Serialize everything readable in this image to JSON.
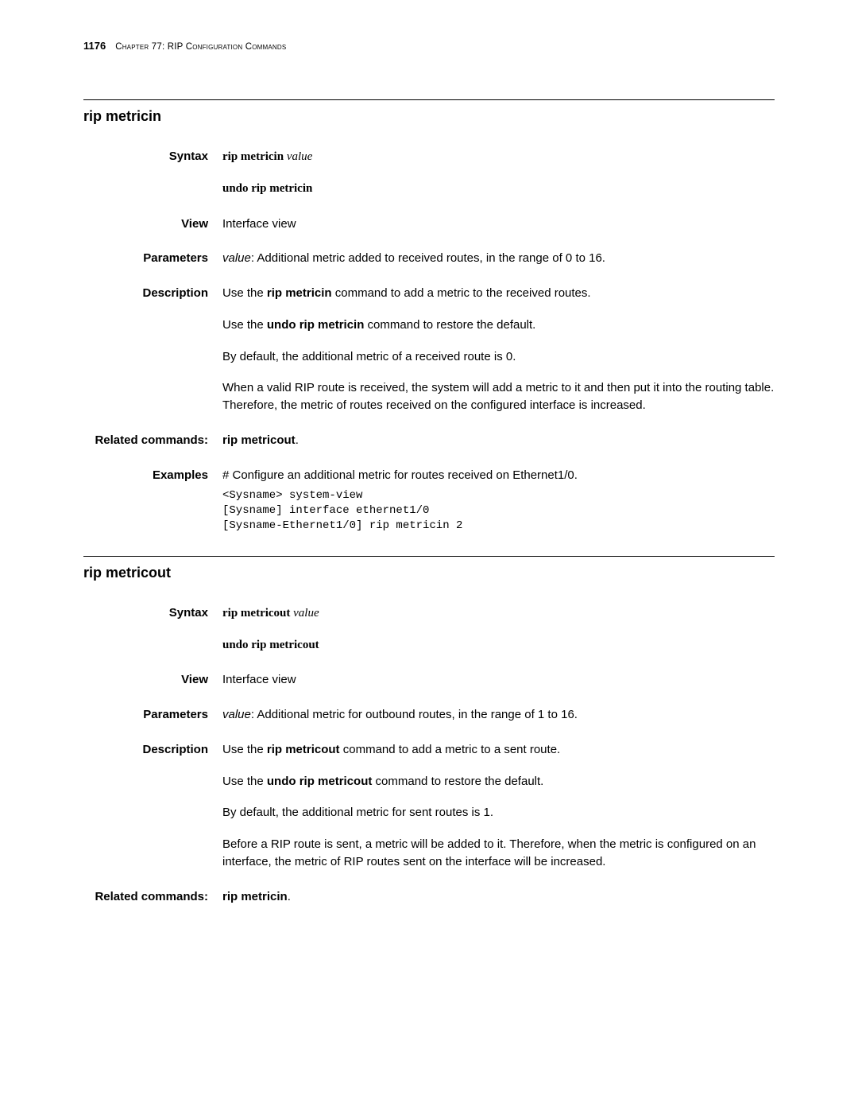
{
  "header": {
    "page_number": "1176",
    "chapter": "Chapter 77: RIP Configuration Commands"
  },
  "sections": [
    {
      "title": "rip metricin",
      "syntax": {
        "label": "Syntax",
        "cmd_bold": "rip metricin",
        "cmd_italic": "value",
        "undo": "undo rip metricin"
      },
      "view": {
        "label": "View",
        "text": "Interface view"
      },
      "parameters": {
        "label": "Parameters",
        "name": "value",
        "desc": ": Additional metric added to received routes, in the range of 0 to 16."
      },
      "description": {
        "label": "Description",
        "p1_pre": "Use the ",
        "p1_bold": "rip metricin",
        "p1_post": " command to add a metric to the received routes.",
        "p2_pre": "Use the ",
        "p2_bold": "undo rip metricin",
        "p2_post": " command to restore the default.",
        "p3": "By default, the additional metric of a received route is 0.",
        "p4": "When a valid RIP route is received, the system will add a metric to it and then put it into the routing table. Therefore, the metric of routes received on the configured interface is increased."
      },
      "related": {
        "label": "Related commands:",
        "text_bold": "rip metricout",
        "text_post": "."
      },
      "examples": {
        "label": "Examples",
        "intro": "# Configure an additional metric for routes received on Ethernet1/0.",
        "cli": "<Sysname> system-view\n[Sysname] interface ethernet1/0\n[Sysname-Ethernet1/0] rip metricin 2"
      }
    },
    {
      "title": "rip metricout",
      "syntax": {
        "label": "Syntax",
        "cmd_bold": "rip metricout",
        "cmd_italic": "value",
        "undo": "undo rip metricout"
      },
      "view": {
        "label": "View",
        "text": "Interface view"
      },
      "parameters": {
        "label": "Parameters",
        "name": "value",
        "desc": ": Additional metric for outbound routes, in the range of 1 to 16."
      },
      "description": {
        "label": "Description",
        "p1_pre": "Use the ",
        "p1_bold": "rip metricout",
        "p1_post": " command to add a metric to a sent route.",
        "p2_pre": "Use the ",
        "p2_bold": "undo rip metricout",
        "p2_post": " command to restore the default.",
        "p3": "By default, the additional metric for sent routes is 1.",
        "p4": "Before a RIP route is sent, a metric will be added to it. Therefore, when the metric is configured on an interface, the metric of RIP routes sent on the interface will be increased."
      },
      "related": {
        "label": "Related commands:",
        "text_bold": "rip metricin",
        "text_post": "."
      }
    }
  ]
}
